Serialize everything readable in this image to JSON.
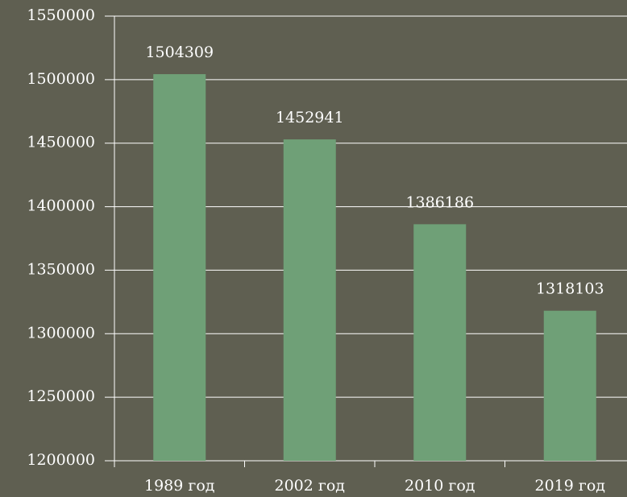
{
  "chart_data": {
    "type": "bar",
    "categories": [
      "1989 год",
      "2002 год",
      "2010 год",
      "2019 год"
    ],
    "values": [
      1504309,
      1452941,
      1386186,
      1318103
    ],
    "color": "#6fa077",
    "ylim": [
      1200000,
      1550000
    ],
    "yticks": [
      1200000,
      1250000,
      1300000,
      1350000,
      1400000,
      1450000,
      1500000,
      1550000
    ],
    "grid": true
  }
}
